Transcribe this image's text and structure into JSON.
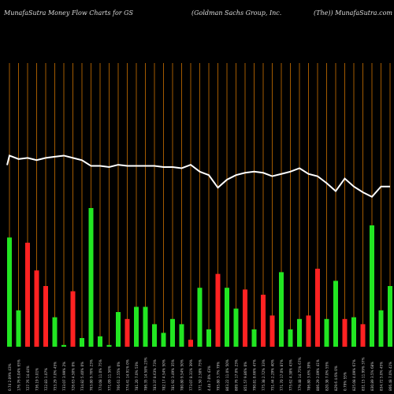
{
  "header": {
    "left": "MunafaSutra  Money  Flow  Charts for GS",
    "mid": "(Goldman  Sachs Group,  Inc.",
    "right": "(The)) MunafaSutra.com"
  },
  "chart_data": {
    "type": "bar",
    "price_line_color": "#ffffff",
    "grid_color": "#a25a00",
    "up_color": "#22e622",
    "down_color": "#ff2222",
    "categories": [
      "0.74 2.09% 43%",
      "176.76 6.04% 65%",
      "727.76 14.44%",
      "736.19 5.01%",
      "722.83 1.07%",
      "753.29 7.0% 45%",
      "733.07 3.99% 2%",
      "726.63 4.50% 0%",
      "734.82 5.40% 0%",
      "763.80 9.76% 23%",
      "774.08 11.0% 75%",
      "771.09 11.56%",
      "766.61 2.55% 0%",
      "774.41 14.91% 0%",
      "781.20 7.0% 53%",
      "786.35 14.58% 23%",
      "783.37 8.63% 73%",
      "782.17 4.54% 50%",
      "781.92 3.49% 35%",
      "780.80 9.54% 50%",
      "773.07 8.31% 39%",
      "771.50 2.58% 75%",
      "4.4b 7.0% 43%",
      "795.80 3.7% 79%",
      "803.22 11.0% 50%",
      "809.76 17.0% 23%",
      "851.57 9.86% 0%",
      "790.81 8.66% 47%",
      "775.38 2.72% 33%",
      "751.44 2.29% 40%",
      "771.70 17.0% 87%",
      "775.62 4.38% 43%",
      "779.48 14.75% 67%",
      "786.80 3.6% 39%",
      "806.29 2.09% 41%",
      "820.38 7.0% 55%",
      "829.6 4.6% 0%",
      "0.79% 55%",
      "825.08 4.09% 67%",
      "831.15 11.99% 37%",
      "830.89 3.5% 68%",
      "834.72 5.0% 45%",
      "866.48 7.0% 41%"
    ],
    "series": [
      {
        "values": [
          63,
          21,
          60,
          44,
          35,
          17,
          1,
          32,
          5,
          80,
          6,
          1,
          20,
          16,
          23,
          23,
          13,
          8,
          16,
          13,
          4,
          34,
          10,
          42,
          34,
          22,
          33,
          10,
          30,
          18,
          43,
          10,
          16,
          18,
          45,
          16,
          38,
          16,
          17,
          13,
          70,
          21,
          35
        ]
      },
      {
        "values": [
          213,
          210,
          211,
          209,
          211,
          212,
          213,
          211,
          209,
          204,
          204,
          203,
          205,
          204,
          204,
          204,
          204,
          203,
          203,
          202,
          205,
          199,
          196,
          185,
          192,
          196,
          198,
          199,
          198,
          195,
          197,
          199,
          202,
          197,
          195,
          189,
          182,
          193,
          186,
          181,
          177,
          186,
          186
        ]
      }
    ],
    "bar_direction": [
      "up",
      "up",
      "down",
      "down",
      "down",
      "up",
      "up",
      "down",
      "up",
      "up",
      "up",
      "up",
      "up",
      "down",
      "up",
      "up",
      "up",
      "up",
      "up",
      "up",
      "down",
      "up",
      "up",
      "down",
      "up",
      "up",
      "down",
      "up",
      "down",
      "down",
      "up",
      "up",
      "up",
      "down",
      "down",
      "up",
      "up",
      "down",
      "up",
      "down",
      "up",
      "up",
      "up"
    ],
    "bar_max": 100,
    "price_range": [
      170,
      225
    ]
  }
}
